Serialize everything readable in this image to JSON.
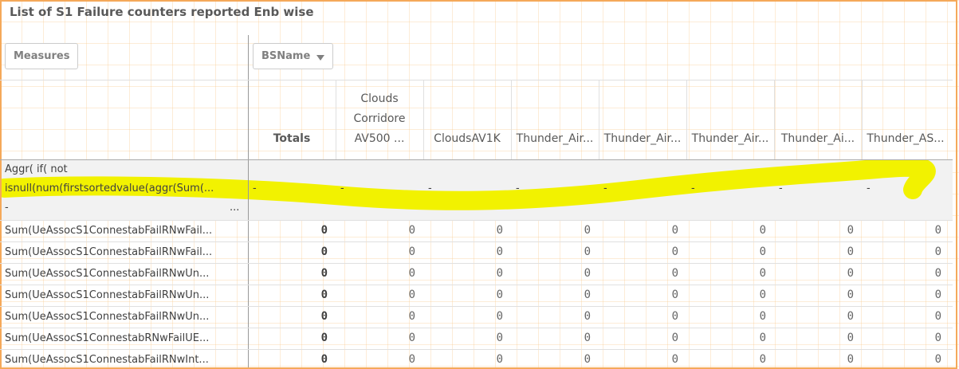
{
  "header": {
    "title": "List of S1 Failure counters reported Enb wise"
  },
  "controls": {
    "measures": "Measures",
    "dimension": "BSName"
  },
  "table": {
    "columns": [
      {
        "lines": [
          "Totals"
        ]
      },
      {
        "lines": [
          "Clouds",
          "Corridore",
          "AV500 ..."
        ]
      },
      {
        "lines": [
          "CloudsAV1K"
        ]
      },
      {
        "lines": [
          "Thunder_Air..."
        ]
      },
      {
        "lines": [
          "Thunder_Air..."
        ]
      },
      {
        "lines": [
          "Thunder_Air..."
        ]
      },
      {
        "lines": [
          "Thunder_Ai..."
        ]
      },
      {
        "lines": [
          "Thunder_AS..."
        ]
      }
    ],
    "expression_row": {
      "lines": [
        "Aggr( if( not",
        "isnull(num(firstsortedvalue(aggr(Sum(...",
        "-"
      ],
      "more": "...",
      "cells": [
        "-",
        "-",
        "-",
        "-",
        "-",
        "-",
        "-",
        "-"
      ]
    },
    "rows": [
      {
        "label": "Sum(UeAssocS1ConnestabFailRNwFail...",
        "cells": [
          0,
          0,
          0,
          0,
          0,
          0,
          0,
          0
        ]
      },
      {
        "label": "Sum(UeAssocS1ConnestabFailRNwFail...",
        "cells": [
          0,
          0,
          0,
          0,
          0,
          0,
          0,
          0
        ]
      },
      {
        "label": "Sum(UeAssocS1ConnestabFailRNwUn...",
        "cells": [
          0,
          0,
          0,
          0,
          0,
          0,
          0,
          0
        ]
      },
      {
        "label": "Sum(UeAssocS1ConnestabFailRNwUn...",
        "cells": [
          0,
          0,
          0,
          0,
          0,
          0,
          0,
          0
        ]
      },
      {
        "label": "Sum(UeAssocS1ConnestabFailRNwUn...",
        "cells": [
          0,
          0,
          0,
          0,
          0,
          0,
          0,
          0
        ]
      },
      {
        "label": "Sum(UeAssocS1ConnestabRNwFailUE...",
        "cells": [
          0,
          0,
          0,
          0,
          0,
          0,
          0,
          0
        ]
      },
      {
        "label": "Sum(UeAssocS1ConnestabFailRNwInt...",
        "cells": [
          0,
          0,
          0,
          0,
          0,
          0,
          0,
          0
        ]
      }
    ]
  }
}
